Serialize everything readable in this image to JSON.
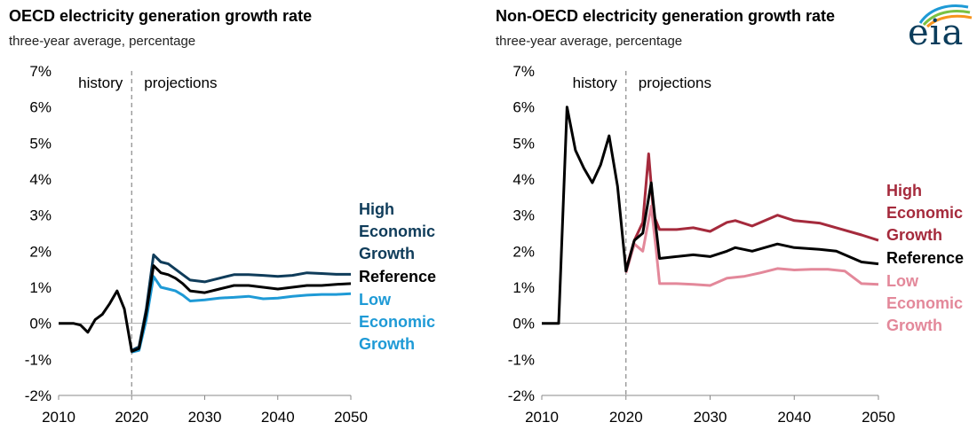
{
  "logo": {
    "text": "eia"
  },
  "colors": {
    "oecd_high": "#0f3c5a",
    "oecd_ref": "#000000",
    "oecd_low": "#1e9ad6",
    "non_high": "#a52a3c",
    "non_ref": "#000000",
    "non_low": "#e3889a",
    "divider": "#888888",
    "zero_line": "#aaaaaa"
  },
  "chart_data": [
    {
      "type": "line",
      "title": "OECD electricity generation growth rate",
      "subtitle": "three-year average, percentage",
      "xlim": [
        2010,
        2050
      ],
      "ylim": [
        -2,
        7
      ],
      "x_ticks": [
        "2010",
        "2020",
        "2030",
        "2040",
        "2050"
      ],
      "y_ticks": [
        "-2%",
        "-1%",
        "0%",
        "1%",
        "2%",
        "3%",
        "4%",
        "5%",
        "6%",
        "7%"
      ],
      "annotations": {
        "history": "history",
        "projections": "projections",
        "divider_x": 2020
      },
      "series": [
        {
          "name": "High Economic Growth",
          "label_lines": [
            "High",
            "Economic",
            "Growth"
          ],
          "color_key": "oecd_high",
          "points": [
            [
              2020,
              -0.75
            ],
            [
              2021,
              -0.65
            ],
            [
              2022,
              0.4
            ],
            [
              2023,
              1.9
            ],
            [
              2024,
              1.7
            ],
            [
              2025,
              1.65
            ],
            [
              2026,
              1.5
            ],
            [
              2027,
              1.35
            ],
            [
              2028,
              1.2
            ],
            [
              2030,
              1.15
            ],
            [
              2032,
              1.25
            ],
            [
              2034,
              1.35
            ],
            [
              2036,
              1.35
            ],
            [
              2038,
              1.33
            ],
            [
              2040,
              1.3
            ],
            [
              2042,
              1.33
            ],
            [
              2044,
              1.4
            ],
            [
              2046,
              1.38
            ],
            [
              2048,
              1.36
            ],
            [
              2050,
              1.36
            ]
          ]
        },
        {
          "name": "Reference",
          "label_lines": [
            "Reference"
          ],
          "color_key": "oecd_ref",
          "points": [
            [
              2010,
              0.0
            ],
            [
              2012,
              0.0
            ],
            [
              2013,
              -0.05
            ],
            [
              2014,
              -0.25
            ],
            [
              2015,
              0.1
            ],
            [
              2016,
              0.25
            ],
            [
              2017,
              0.55
            ],
            [
              2018,
              0.9
            ],
            [
              2019,
              0.4
            ],
            [
              2020,
              -0.78
            ],
            [
              2021,
              -0.7
            ],
            [
              2022,
              0.3
            ],
            [
              2023,
              1.6
            ],
            [
              2024,
              1.4
            ],
            [
              2025,
              1.35
            ],
            [
              2026,
              1.25
            ],
            [
              2027,
              1.1
            ],
            [
              2028,
              0.9
            ],
            [
              2030,
              0.85
            ],
            [
              2032,
              0.95
            ],
            [
              2034,
              1.05
            ],
            [
              2036,
              1.05
            ],
            [
              2038,
              1.0
            ],
            [
              2040,
              0.95
            ],
            [
              2042,
              1.0
            ],
            [
              2044,
              1.05
            ],
            [
              2046,
              1.05
            ],
            [
              2048,
              1.08
            ],
            [
              2050,
              1.1
            ]
          ]
        },
        {
          "name": "Low Economic Growth",
          "label_lines": [
            "Low",
            "Economic",
            "Growth"
          ],
          "color_key": "oecd_low",
          "points": [
            [
              2020,
              -0.8
            ],
            [
              2021,
              -0.75
            ],
            [
              2022,
              0.1
            ],
            [
              2023,
              1.3
            ],
            [
              2024,
              1.0
            ],
            [
              2025,
              0.95
            ],
            [
              2026,
              0.9
            ],
            [
              2027,
              0.78
            ],
            [
              2028,
              0.62
            ],
            [
              2030,
              0.65
            ],
            [
              2032,
              0.7
            ],
            [
              2034,
              0.72
            ],
            [
              2036,
              0.75
            ],
            [
              2038,
              0.68
            ],
            [
              2040,
              0.7
            ],
            [
              2042,
              0.75
            ],
            [
              2044,
              0.78
            ],
            [
              2046,
              0.8
            ],
            [
              2048,
              0.8
            ],
            [
              2050,
              0.82
            ]
          ]
        }
      ]
    },
    {
      "type": "line",
      "title": "Non-OECD electricity generation growth rate",
      "subtitle": "three-year average, percentage",
      "xlim": [
        2010,
        2050
      ],
      "ylim": [
        -2,
        7
      ],
      "x_ticks": [
        "2010",
        "2020",
        "2030",
        "2040",
        "2050"
      ],
      "y_ticks": [
        "-2%",
        "-1%",
        "0%",
        "1%",
        "2%",
        "3%",
        "4%",
        "5%",
        "6%",
        "7%"
      ],
      "annotations": {
        "history": "history",
        "projections": "projections",
        "divider_x": 2020
      },
      "series": [
        {
          "name": "High Economic Growth",
          "label_lines": [
            "High",
            "Economic",
            "Growth"
          ],
          "color_key": "non_high",
          "points": [
            [
              2020,
              1.5
            ],
            [
              2021,
              2.3
            ],
            [
              2022,
              2.8
            ],
            [
              2022.7,
              4.7
            ],
            [
              2023.3,
              3.0
            ],
            [
              2024,
              2.6
            ],
            [
              2026,
              2.6
            ],
            [
              2028,
              2.65
            ],
            [
              2030,
              2.55
            ],
            [
              2032,
              2.8
            ],
            [
              2033,
              2.85
            ],
            [
              2035,
              2.7
            ],
            [
              2038,
              3.0
            ],
            [
              2040,
              2.85
            ],
            [
              2043,
              2.78
            ],
            [
              2045,
              2.65
            ],
            [
              2048,
              2.45
            ],
            [
              2050,
              2.3
            ]
          ]
        },
        {
          "name": "Reference",
          "label_lines": [
            "Reference"
          ],
          "color_key": "non_ref",
          "points": [
            [
              2010,
              0.0
            ],
            [
              2012,
              0.0
            ],
            [
              2013,
              6.0
            ],
            [
              2014,
              4.8
            ],
            [
              2015,
              4.3
            ],
            [
              2016,
              3.9
            ],
            [
              2017,
              4.4
            ],
            [
              2018,
              5.2
            ],
            [
              2019,
              3.8
            ],
            [
              2020,
              1.45
            ],
            [
              2021,
              2.3
            ],
            [
              2022,
              2.5
            ],
            [
              2023,
              3.9
            ],
            [
              2023.5,
              2.8
            ],
            [
              2024,
              1.8
            ],
            [
              2026,
              1.85
            ],
            [
              2028,
              1.9
            ],
            [
              2030,
              1.85
            ],
            [
              2032,
              2.0
            ],
            [
              2033,
              2.1
            ],
            [
              2035,
              2.0
            ],
            [
              2038,
              2.2
            ],
            [
              2040,
              2.1
            ],
            [
              2043,
              2.05
            ],
            [
              2045,
              2.0
            ],
            [
              2048,
              1.7
            ],
            [
              2050,
              1.65
            ]
          ]
        },
        {
          "name": "Low Economic Growth",
          "label_lines": [
            "Low",
            "Economic",
            "Growth"
          ],
          "color_key": "non_low",
          "points": [
            [
              2020,
              1.4
            ],
            [
              2021,
              2.2
            ],
            [
              2022,
              2.0
            ],
            [
              2023,
              3.25
            ],
            [
              2023.6,
              2.0
            ],
            [
              2024,
              1.1
            ],
            [
              2026,
              1.1
            ],
            [
              2028,
              1.08
            ],
            [
              2030,
              1.05
            ],
            [
              2032,
              1.25
            ],
            [
              2034,
              1.3
            ],
            [
              2036,
              1.4
            ],
            [
              2038,
              1.52
            ],
            [
              2040,
              1.48
            ],
            [
              2042,
              1.5
            ],
            [
              2044,
              1.5
            ],
            [
              2046,
              1.45
            ],
            [
              2048,
              1.1
            ],
            [
              2050,
              1.08
            ]
          ]
        }
      ]
    }
  ]
}
